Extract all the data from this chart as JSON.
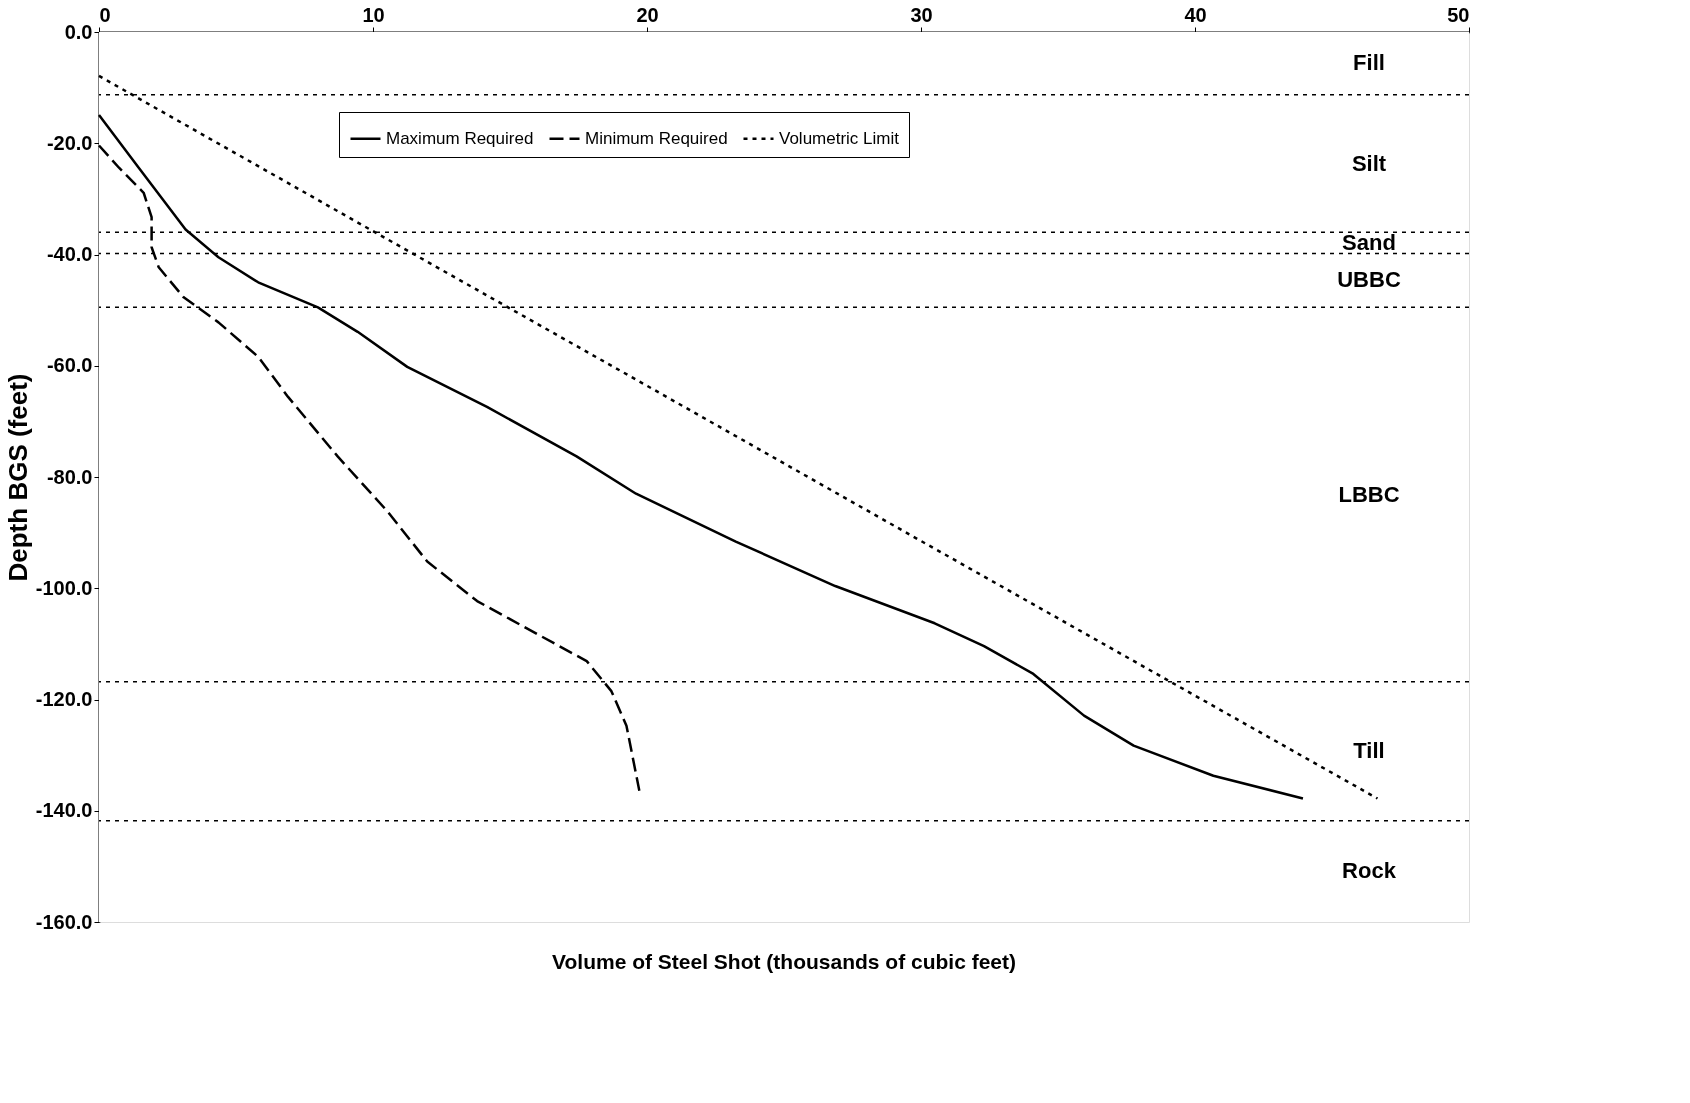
{
  "chart_data": {
    "type": "line",
    "xlabel": "Volume of Steel Shot (thousands of cubic feet)",
    "ylabel": "Depth BGS (feet)",
    "xlim": [
      0,
      50
    ],
    "xticks": [
      0,
      10,
      20,
      30,
      40,
      50
    ],
    "ylim": [
      -160,
      0
    ],
    "yticks": [
      {
        "value": 0,
        "label": "0.0"
      },
      {
        "value": -20,
        "label": "-20.0"
      },
      {
        "value": -40,
        "label": "-40.0"
      },
      {
        "value": -60,
        "label": "-60.0"
      },
      {
        "value": -80,
        "label": "-80.0"
      },
      {
        "value": -100,
        "label": "-100.0"
      },
      {
        "value": -120,
        "label": "-120.0"
      },
      {
        "value": -140,
        "label": "-140.0"
      },
      {
        "value": -160,
        "label": "-160.0"
      }
    ],
    "grid": false,
    "legend": "top",
    "marker": "none",
    "series": [
      {
        "name": "Maximum Required",
        "color": "#000000",
        "line_style": "solid",
        "x": [
          0,
          1.45,
          3.16,
          4.36,
          5.81,
          7.99,
          9.44,
          11.25,
          14.16,
          17.43,
          19.6,
          23.24,
          26.87,
          30.5,
          32.3,
          34.1,
          35.95,
          37.76,
          40.67,
          43.94
        ],
        "values": [
          -14.9,
          -24.4,
          -35.5,
          -40.5,
          -45,
          -49.5,
          -53.9,
          -60.2,
          -67.4,
          -76.3,
          -83,
          -91.6,
          -99.6,
          -106.3,
          -110.4,
          -115.4,
          -122.9,
          -128.3,
          -133.7,
          -137.8
        ]
      },
      {
        "name": "Minimum Required",
        "color": "#000000",
        "line_style": "dashed",
        "x": [
          0,
          0.73,
          1.63,
          1.92,
          1.92,
          2.18,
          3.09,
          4.36,
          5.81,
          6.9,
          8.71,
          10.53,
          11.98,
          13.8,
          15.98,
          17.8,
          18.7,
          19.25,
          19.72
        ],
        "values": [
          -20.4,
          -24.4,
          -28.9,
          -33.3,
          -38.7,
          -42.3,
          -47.7,
          -52.2,
          -58.4,
          -65.6,
          -76.3,
          -86.2,
          -95.2,
          -102.3,
          -108.2,
          -113.1,
          -118.5,
          -124.7,
          -136.4
        ]
      },
      {
        "name": "Volumetric Limit",
        "color": "#000000",
        "line_style": "dotted",
        "x": [
          0,
          10,
          20,
          30,
          40,
          46.66
        ],
        "values": [
          -7.9,
          -35.8,
          -63.6,
          -91.5,
          -119.3,
          -137.8
        ]
      }
    ],
    "ref_lines": [
      {
        "axis": "y",
        "value": -11.3,
        "line_style": "dotted"
      },
      {
        "axis": "y",
        "value": -36,
        "line_style": "dotted"
      },
      {
        "axis": "y",
        "value": -39.8,
        "line_style": "dotted"
      },
      {
        "axis": "y",
        "value": -49.5,
        "line_style": "dotted"
      },
      {
        "axis": "y",
        "value": -116.8,
        "line_style": "dotted"
      },
      {
        "axis": "y",
        "value": -141.8,
        "line_style": "dotted"
      }
    ],
    "bands": [
      {
        "axis": "y",
        "from": 0,
        "to": -11.3,
        "label": "Fill",
        "color": "#ffffff"
      },
      {
        "axis": "y",
        "from": -11.3,
        "to": -36,
        "label": "Silt",
        "color": "#ffffff"
      },
      {
        "axis": "y",
        "from": -36,
        "to": -39.8,
        "label": "Sand",
        "color": "#ffffff"
      },
      {
        "axis": "y",
        "from": -39.8,
        "to": -49.5,
        "label": "UBBC",
        "color": "#ffffff"
      },
      {
        "axis": "y",
        "from": -49.5,
        "to": -116.8,
        "label": "LBBC",
        "color": "#ffffff"
      },
      {
        "axis": "y",
        "from": -116.8,
        "to": -141.8,
        "label": "Till",
        "color": "#ffffff"
      },
      {
        "axis": "y",
        "from": -141.8,
        "to": -160,
        "label": "Rock",
        "color": "#ffffff"
      }
    ]
  }
}
